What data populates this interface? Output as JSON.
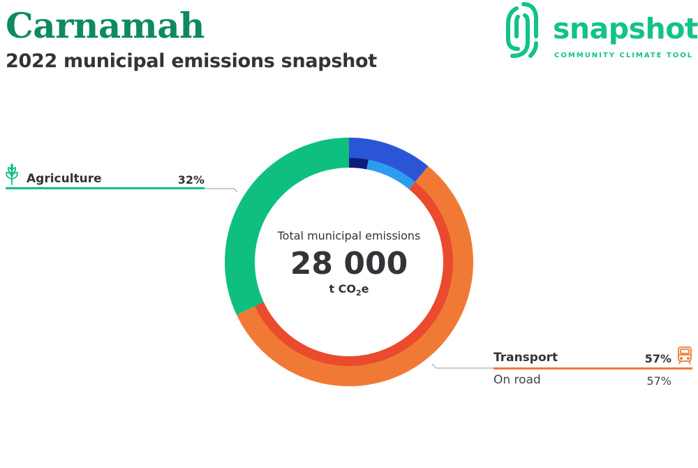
{
  "header": {
    "title": "Carnamah",
    "subtitle": "2022 municipal emissions snapshot"
  },
  "logo": {
    "wordmark": "snapshot",
    "tagline": "COMMUNITY CLIMATE TOOL",
    "icon": "fingerprint-icon",
    "color": "#12c28a"
  },
  "center": {
    "label": "Total municipal emissions",
    "value": "28 000",
    "unit_prefix": "t CO",
    "unit_sub": "2",
    "unit_suffix": "e"
  },
  "legend": {
    "agriculture": {
      "label": "Agriculture",
      "pct": "32%",
      "icon": "sprout-icon",
      "color": "#0fbf80"
    },
    "transport": {
      "label": "Transport",
      "pct": "57%",
      "icon": "train-icon",
      "color": "#f07a35",
      "sub": {
        "label": "On road",
        "pct": "57%"
      }
    }
  },
  "chart_data": {
    "type": "donut",
    "total": 28000,
    "unit": "t CO2e",
    "title": "",
    "outer_ring": [
      {
        "name": "Agriculture",
        "share": 0.32,
        "color": "#0fbf80"
      },
      {
        "name": "Transport",
        "share": 0.57,
        "color": "#f07a35"
      },
      {
        "name": "",
        "share": 0.11,
        "color": "#2a56d6"
      }
    ],
    "inner_ring": [
      {
        "parent": "",
        "share": 0.03,
        "color": "#0b1f7a"
      },
      {
        "parent": "",
        "share": 0.08,
        "color": "#2c9cf0"
      },
      {
        "parent": "Transport",
        "name": "On road",
        "share": 0.57,
        "color": "#ea4a2e"
      },
      {
        "parent": "Agriculture",
        "share": 0.32,
        "color": "#0fbf80"
      }
    ],
    "start_segment": "inner_ring_order_after_outer_start"
  }
}
